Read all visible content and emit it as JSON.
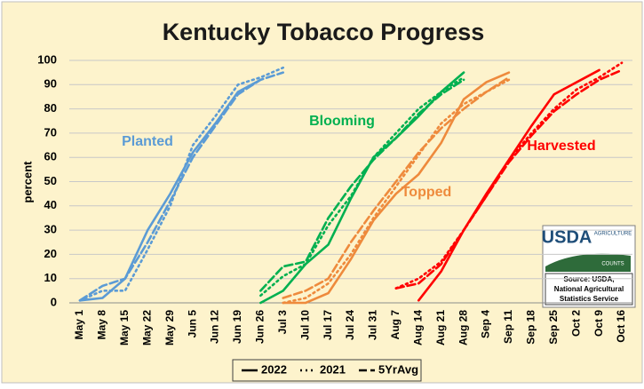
{
  "chart_data": {
    "type": "line",
    "title": "Kentucky Tobacco Progress",
    "y_label": "percent",
    "categories": [
      "May 1",
      "May 8",
      "May 15",
      "May 22",
      "May 29",
      "Jun 5",
      "Jun 12",
      "Jun 19",
      "Jun 26",
      "Jul 3",
      "Jul 10",
      "Jul 17",
      "Jul 24",
      "Jul 31",
      "Aug 7",
      "Aug 14",
      "Aug 21",
      "Aug 28",
      "Sep 4",
      "Sep 11",
      "Sep 18",
      "Sep 25",
      "Oct 2",
      "Oct 9",
      "Oct 16"
    ],
    "ylim": [
      0,
      100
    ],
    "yticks": [
      0,
      10,
      20,
      30,
      40,
      50,
      60,
      70,
      80,
      90,
      100
    ],
    "grid": true,
    "legend": [
      {
        "name": "2022",
        "dash": "solid"
      },
      {
        "name": "2021",
        "dash": "dot"
      },
      {
        "name": "5YrAvg",
        "dash": "dash"
      }
    ],
    "series": [
      {
        "label": "Planted",
        "color": "#5b9bd5",
        "lines": [
          {
            "values": [
              1,
              2,
              10,
              30,
              45,
              62,
              74,
              87,
              92,
              null,
              null,
              null,
              null,
              null,
              null,
              null,
              null,
              null,
              null,
              null,
              null,
              null,
              null,
              null,
              null
            ]
          },
          {
            "values": [
              1,
              5,
              5,
              22,
              40,
              65,
              77,
              90,
              93,
              97,
              null,
              null,
              null,
              null,
              null,
              null,
              null,
              null,
              null,
              null,
              null,
              null,
              null,
              null,
              null
            ]
          },
          {
            "values": [
              1,
              7,
              10,
              25,
              42,
              60,
              73,
              86,
              92,
              95,
              null,
              null,
              null,
              null,
              null,
              null,
              null,
              null,
              null,
              null,
              null,
              null,
              null,
              null,
              null
            ]
          }
        ]
      },
      {
        "label": "Blooming",
        "color": "#00b050",
        "lines": [
          {
            "values": [
              null,
              null,
              null,
              null,
              null,
              null,
              null,
              null,
              0,
              5,
              16,
              24,
              43,
              60,
              68,
              77,
              87,
              95,
              null,
              null,
              null,
              null,
              null,
              null,
              null
            ]
          },
          {
            "values": [
              null,
              null,
              null,
              null,
              null,
              null,
              null,
              null,
              3,
              11,
              16,
              32,
              44,
              60,
              70,
              80,
              87,
              93,
              null,
              null,
              null,
              null,
              null,
              null,
              null
            ]
          },
          {
            "values": [
              null,
              null,
              null,
              null,
              null,
              null,
              null,
              null,
              5,
              15,
              17,
              35,
              48,
              59,
              68,
              78,
              86,
              92,
              null,
              null,
              null,
              null,
              null,
              null,
              null
            ]
          }
        ]
      },
      {
        "label": "Topped",
        "color": "#ee8a3c",
        "lines": [
          {
            "values": [
              null,
              null,
              null,
              null,
              null,
              null,
              null,
              null,
              null,
              0,
              0,
              4,
              18,
              34,
              45,
              53,
              66,
              84,
              91,
              95,
              null,
              null,
              null,
              null,
              null
            ]
          },
          {
            "values": [
              null,
              null,
              null,
              null,
              null,
              null,
              null,
              null,
              null,
              0,
              2,
              8,
              20,
              35,
              48,
              61,
              74,
              82,
              87,
              92,
              null,
              null,
              null,
              null,
              null
            ]
          },
          {
            "values": [
              null,
              null,
              null,
              null,
              null,
              null,
              null,
              null,
              null,
              2,
              5,
              10,
              25,
              38,
              50,
              62,
              72,
              80,
              87,
              93,
              null,
              null,
              null,
              null,
              null
            ]
          }
        ]
      },
      {
        "label": "Harvested",
        "color": "#ff0000",
        "lines": [
          {
            "values": [
              null,
              null,
              null,
              null,
              null,
              null,
              null,
              null,
              null,
              null,
              null,
              null,
              null,
              null,
              null,
              1,
              13,
              30,
              45,
              59,
              73,
              86,
              91,
              96,
              null
            ]
          },
          {
            "values": [
              null,
              null,
              null,
              null,
              null,
              null,
              null,
              null,
              null,
              null,
              null,
              null,
              null,
              null,
              6,
              10,
              17,
              30,
              44,
              59,
              70,
              80,
              88,
              93,
              99
            ]
          },
          {
            "values": [
              null,
              null,
              null,
              null,
              null,
              null,
              null,
              null,
              null,
              null,
              null,
              null,
              null,
              null,
              6,
              8,
              16,
              30,
              44,
              58,
              69,
              79,
              86,
              92,
              96
            ]
          }
        ]
      }
    ],
    "logo": {
      "agency": "USDA",
      "arc_top": "AGRICULTURE",
      "arc_bottom": "COUNTS"
    },
    "source": [
      "Source: USDA,",
      "National Agricultural",
      "Statistics Service"
    ]
  }
}
